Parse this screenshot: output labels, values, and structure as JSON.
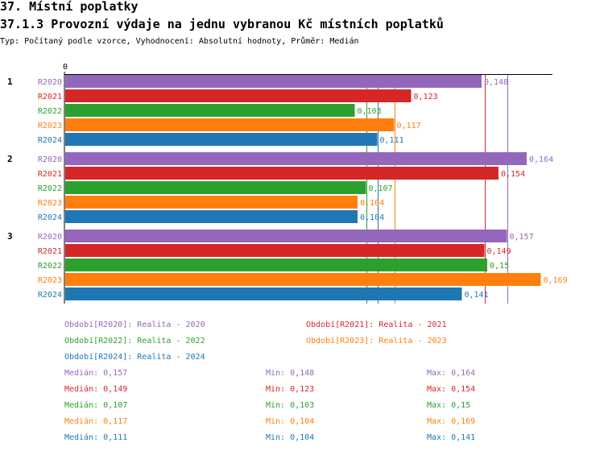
{
  "page": {
    "title": "37. Místní poplatky",
    "subtitle": "37.1.3 Provozní výdaje na jednu vybranou Kč místních poplatků",
    "info": "Typ: Počítaný podle vzorce, Vyhodnocení: Absolutní hodnoty, Průměr: Medián"
  },
  "colors": {
    "R2020": "#9467bd",
    "R2021": "#d62728",
    "R2022": "#2ca02c",
    "R2023": "#ff7f0e",
    "R2024": "#1f77b4"
  },
  "chart_data": {
    "type": "bar",
    "orientation": "horizontal",
    "categories": [
      "1",
      "2",
      "3"
    ],
    "axis_zero_label": "0",
    "xlim": [
      0,
      0.171
    ],
    "series": [
      {
        "name": "R2020",
        "values": [
          0.148,
          0.164,
          0.157
        ],
        "labels": [
          "0,148",
          "0,164",
          "0,157"
        ]
      },
      {
        "name": "R2021",
        "values": [
          0.123,
          0.154,
          0.149
        ],
        "labels": [
          "0,123",
          "0,154",
          "0,149"
        ]
      },
      {
        "name": "R2022",
        "values": [
          0.103,
          0.107,
          0.15
        ],
        "labels": [
          "0,103",
          "0,107",
          "0,15"
        ]
      },
      {
        "name": "R2023",
        "values": [
          0.117,
          0.104,
          0.169
        ],
        "labels": [
          "0,117",
          "0,104",
          "0,169"
        ]
      },
      {
        "name": "R2024",
        "values": [
          0.111,
          0.104,
          0.141
        ],
        "labels": [
          "0,111",
          "0,104",
          "0,141"
        ]
      }
    ],
    "reference_lines": [
      {
        "series": "R2020",
        "value": 0.157
      },
      {
        "series": "R2021",
        "value": 0.149
      },
      {
        "series": "R2022",
        "value": 0.107
      },
      {
        "series": "R2023",
        "value": 0.117
      },
      {
        "series": "R2024",
        "value": 0.111
      }
    ],
    "legend": [
      {
        "series": "R2020",
        "text": "Období[R2020]: Realita - 2020"
      },
      {
        "series": "R2021",
        "text": "Období[R2021]: Realita - 2021"
      },
      {
        "series": "R2022",
        "text": "Období[R2022]: Realita - 2022"
      },
      {
        "series": "R2023",
        "text": "Období[R2023]: Realita - 2023"
      },
      {
        "series": "R2024",
        "text": "Období[R2024]: Realita - 2024"
      }
    ],
    "stats": [
      {
        "series": "R2020",
        "median": "Medián: 0,157",
        "min": "Min: 0,148",
        "max": "Max: 0,164"
      },
      {
        "series": "R2021",
        "median": "Medián: 0,149",
        "min": "Min: 0,123",
        "max": "Max: 0,154"
      },
      {
        "series": "R2022",
        "median": "Medián: 0,107",
        "min": "Min: 0,103",
        "max": "Max: 0,15"
      },
      {
        "series": "R2023",
        "median": "Medián: 0,117",
        "min": "Min: 0,104",
        "max": "Max: 0,169"
      },
      {
        "series": "R2024",
        "median": "Medián: 0,111",
        "min": "Min: 0,104",
        "max": "Max: 0,141"
      }
    ]
  }
}
